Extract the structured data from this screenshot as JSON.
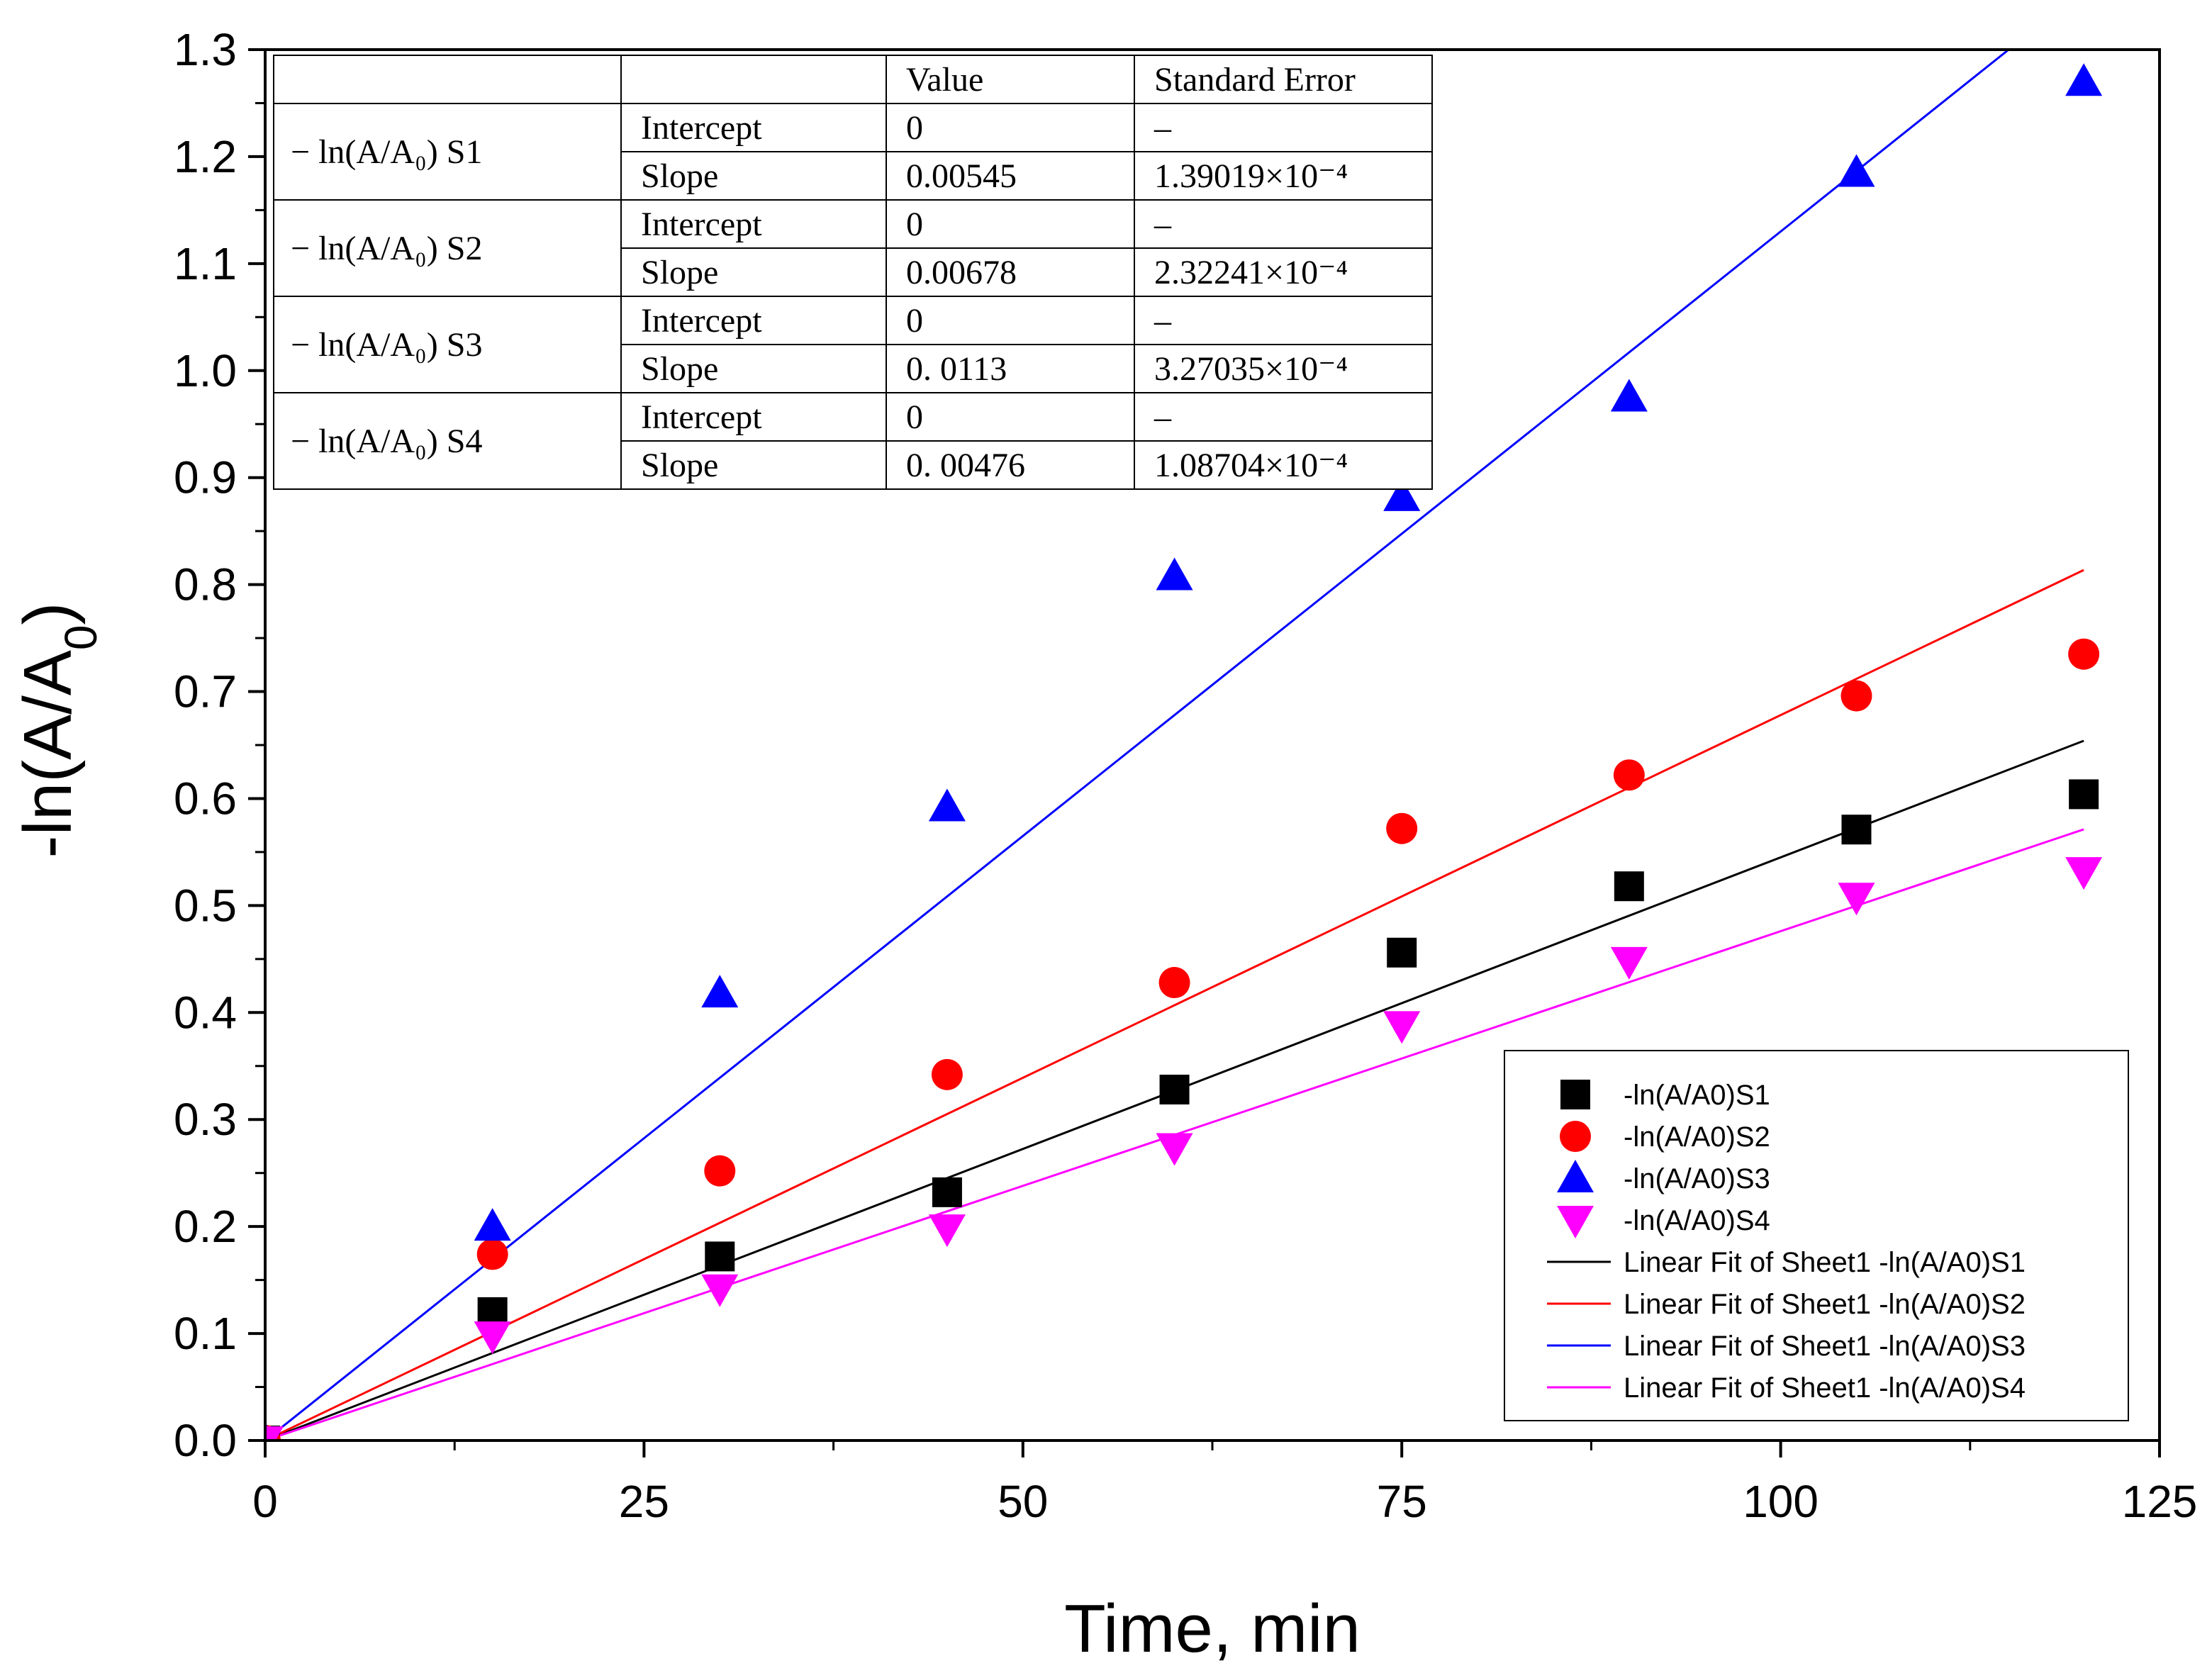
{
  "chart_data": {
    "type": "scatter",
    "xlabel": "Time, min",
    "ylabel": "-ln(A/A",
    "ylabel_sub": "0",
    "ylabel_close": ")",
    "xlim": [
      0,
      125
    ],
    "ylim": [
      0,
      1.3
    ],
    "x_ticks": [
      0,
      25,
      50,
      75,
      100,
      125
    ],
    "x_tick_labels": [
      "0",
      "25",
      "50",
      "75",
      "100",
      "125"
    ],
    "x_minor_step": 12.5,
    "y_ticks": [
      0,
      0.1,
      0.2,
      0.3,
      0.4,
      0.5,
      0.6,
      0.7,
      0.8,
      0.9,
      1.0,
      1.1,
      1.2,
      1.3
    ],
    "y_tick_labels": [
      "0.0",
      "0.1",
      "0.2",
      "0.3",
      "0.4",
      "0.5",
      "0.6",
      "0.7",
      "0.8",
      "0.9",
      "1.0",
      "1.1",
      "1.2",
      "1.3"
    ],
    "y_minor_step": 0.05,
    "x": [
      0,
      15,
      30,
      45,
      60,
      75,
      90,
      105,
      120
    ],
    "series": [
      {
        "name": "-ln(A/A0)S1",
        "marker": "square",
        "color": "#000000",
        "values": [
          0,
          0.12,
          0.172,
          0.232,
          0.328,
          0.456,
          0.518,
          0.571,
          0.604
        ],
        "fit_name": "Linear Fit of Sheet1 -ln(A/A0)S1",
        "fit_slope": 0.00545
      },
      {
        "name": "-ln(A/A0)S2",
        "marker": "circle",
        "color": "#ff0000",
        "values": [
          0,
          0.174,
          0.252,
          0.342,
          0.428,
          0.572,
          0.622,
          0.696,
          0.735
        ],
        "fit_name": "Linear Fit of Sheet1 -ln(A/A0)S2",
        "fit_slope": 0.00678
      },
      {
        "name": "-ln(A/A0)S3",
        "marker": "triangle-up",
        "color": "#0000ff",
        "values": [
          0,
          0.2,
          0.418,
          0.592,
          0.808,
          0.882,
          0.975,
          1.185,
          1.27
        ],
        "fit_name": "Linear Fit of Sheet1 -ln(A/A0)S3",
        "fit_slope": 0.0113
      },
      {
        "name": "-ln(A/A0)S4",
        "marker": "triangle-down",
        "color": "#ff00ff",
        "values": [
          0,
          0.098,
          0.142,
          0.198,
          0.274,
          0.388,
          0.448,
          0.508,
          0.532
        ],
        "fit_name": "Linear Fit of Sheet1 -ln(A/A0)S4",
        "fit_slope": 0.00476
      }
    ],
    "fit_x_max": 120,
    "legend_position": "bottom-right",
    "table": {
      "header": [
        "",
        "",
        "Value",
        "Standard Error"
      ],
      "rows": [
        {
          "group": "− ln(A/A₀) S1",
          "param": "Intercept",
          "value": "0",
          "error": "–"
        },
        {
          "group": "",
          "param": "Slope",
          "value": "0.00545",
          "error": "1.39019×10⁻⁴"
        },
        {
          "group": "− ln(A/A₀) S2",
          "param": "Intercept",
          "value": "0",
          "error": "–"
        },
        {
          "group": "",
          "param": "Slope",
          "value": "0.00678",
          "error": "2.32241×10⁻⁴"
        },
        {
          "group": "− ln(A/A₀) S3",
          "param": "Intercept",
          "value": "0",
          "error": "–"
        },
        {
          "group": "",
          "param": "Slope",
          "value": "0. 0113",
          "error": "3.27035×10⁻⁴"
        },
        {
          "group": "− ln(A/A₀) S4",
          "param": "Intercept",
          "value": "0",
          "error": "–"
        },
        {
          "group": "",
          "param": "Slope",
          "value": "0. 00476",
          "error": "1.08704×10⁻⁴"
        }
      ]
    }
  }
}
